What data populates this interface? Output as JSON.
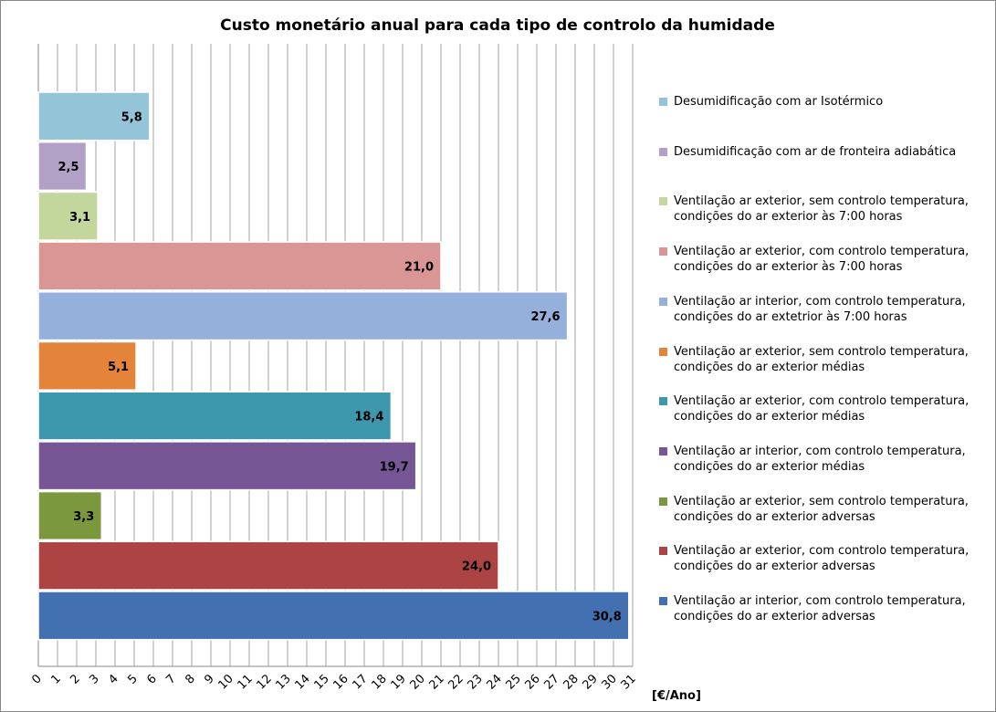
{
  "chart_data": {
    "type": "bar",
    "orientation": "horizontal",
    "title": "Custo monetário anual para cada tipo de controlo da humidade",
    "xlabel": "[€/Ano]",
    "xlim": [
      0,
      31
    ],
    "xticks": [
      0,
      1,
      2,
      3,
      4,
      5,
      6,
      7,
      8,
      9,
      10,
      11,
      12,
      13,
      14,
      15,
      16,
      17,
      18,
      19,
      20,
      21,
      22,
      23,
      24,
      25,
      26,
      27,
      28,
      29,
      30,
      31
    ],
    "grid": true,
    "legend": "right",
    "series": [
      {
        "name": "Desumidificação com ar Isotérmico",
        "color": "#93c4d8",
        "values": [
          5.8
        ],
        "value_labels": [
          "5,8"
        ]
      },
      {
        "name": "Desumidificação com ar de fronteira adiabática",
        "color": "#b2a1c7",
        "values": [
          2.5
        ],
        "value_labels": [
          "2,5"
        ]
      },
      {
        "name": "Ventilação ar exterior, sem controlo temperatura, condições do ar exterior às 7:00 horas",
        "color": "#c3d69b",
        "values": [
          3.1
        ],
        "value_labels": [
          "3,1"
        ]
      },
      {
        "name": "Ventilação ar exterior, com controlo temperatura, condições do ar exterior às 7:00 horas",
        "color": "#d99694",
        "values": [
          21.0
        ],
        "value_labels": [
          "21,0"
        ]
      },
      {
        "name": "Ventilação ar interior, com controlo temperatura, condições do ar extetrior às 7:00 horas",
        "color": "#95b0da",
        "values": [
          27.6
        ],
        "value_labels": [
          "27,6"
        ]
      },
      {
        "name": "Ventilação ar exterior, sem controlo temperatura, condições do ar exterior médias",
        "color": "#e3843a",
        "values": [
          5.1
        ],
        "value_labels": [
          "5,1"
        ]
      },
      {
        "name": "Ventilação ar exterior, com controlo temperatura, condições do ar exterior médias",
        "color": "#3d98ad",
        "values": [
          18.4
        ],
        "value_labels": [
          "18,4"
        ]
      },
      {
        "name": "Ventilação ar interior, com controlo temperatura, condições do ar exterior médias",
        "color": "#765694",
        "values": [
          19.7
        ],
        "value_labels": [
          "19,7"
        ]
      },
      {
        "name": "Ventilação ar exterior, sem controlo temperatura, condições do ar exterior adversas",
        "color": "#7b983f",
        "values": [
          3.3
        ],
        "value_labels": [
          "3,3"
        ]
      },
      {
        "name": "Ventilação ar exterior, com controlo temperatura, condições do ar exterior adversas",
        "color": "#ab4443",
        "values": [
          24.0
        ],
        "value_labels": [
          "24,0"
        ]
      },
      {
        "name": "Ventilação ar interior, com controlo temperatura, condições do ar exterior adversas",
        "color": "#4270b0",
        "values": [
          30.8
        ],
        "value_labels": [
          "30,8"
        ]
      }
    ]
  }
}
